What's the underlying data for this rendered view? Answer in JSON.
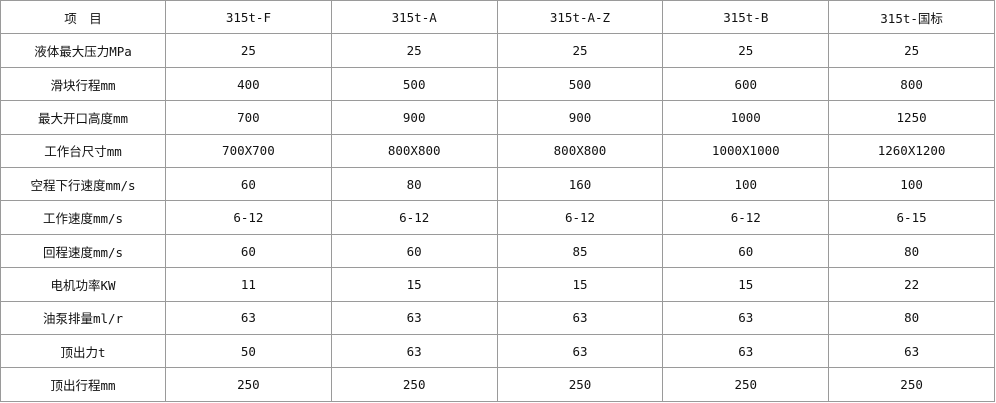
{
  "table": {
    "header": [
      "项　目",
      "315t-F",
      "315t-A",
      "315t-A-Z",
      "315t-B",
      "315t-国标"
    ],
    "rows": [
      [
        "液体最大压力MPa",
        "25",
        "25",
        "25",
        "25",
        "25"
      ],
      [
        "滑块行程mm",
        "400",
        "500",
        "500",
        "600",
        "800"
      ],
      [
        "最大开口高度mm",
        "700",
        "900",
        "900",
        "1000",
        "1250"
      ],
      [
        "工作台尺寸mm",
        "700X700",
        "800X800",
        "800X800",
        "1000X1000",
        "1260X1200"
      ],
      [
        "空程下行速度mm/s",
        "60",
        "80",
        "160",
        "100",
        "100"
      ],
      [
        "工作速度mm/s",
        "6-12",
        "6-12",
        "6-12",
        "6-12",
        "6-15"
      ],
      [
        "回程速度mm/s",
        "60",
        "60",
        "85",
        "60",
        "80"
      ],
      [
        "电机功率KW",
        "11",
        "15",
        "15",
        "15",
        "22"
      ],
      [
        "油泵排量ml/r",
        "63",
        "63",
        "63",
        "63",
        "80"
      ],
      [
        "顶出力t",
        "50",
        "63",
        "63",
        "63",
        "63"
      ],
      [
        "顶出行程mm",
        "250",
        "250",
        "250",
        "250",
        "250"
      ]
    ]
  }
}
